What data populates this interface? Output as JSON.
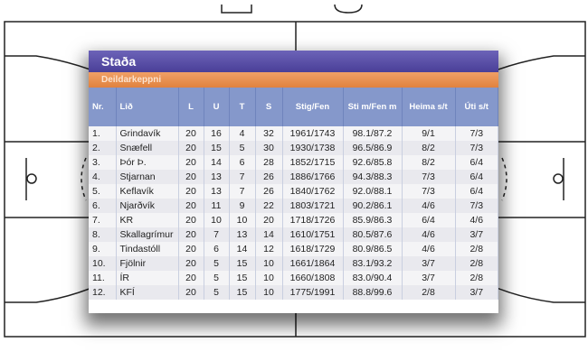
{
  "panel": {
    "title": "Staða",
    "subtitle": "Deildarkeppni"
  },
  "colors": {
    "title_bar": "#5a50a8",
    "sub_bar": "#e8904e",
    "header": "#8598cb"
  },
  "table": {
    "headers": [
      "Nr.",
      "Lið",
      "L",
      "U",
      "T",
      "S",
      "Stig/Fen",
      "Sti m/Fen m",
      "Heima s/t",
      "Úti s/t"
    ],
    "rows": [
      [
        "1.",
        "Grindavík",
        "20",
        "16",
        "4",
        "32",
        "1961/1743",
        "98.1/87.2",
        "9/1",
        "7/3"
      ],
      [
        "2.",
        "Snæfell",
        "20",
        "15",
        "5",
        "30",
        "1930/1738",
        "96.5/86.9",
        "8/2",
        "7/3"
      ],
      [
        "3.",
        "Þór Þ.",
        "20",
        "14",
        "6",
        "28",
        "1852/1715",
        "92.6/85.8",
        "8/2",
        "6/4"
      ],
      [
        "4.",
        "Stjarnan",
        "20",
        "13",
        "7",
        "26",
        "1886/1766",
        "94.3/88.3",
        "7/3",
        "6/4"
      ],
      [
        "5.",
        "Keflavík",
        "20",
        "13",
        "7",
        "26",
        "1840/1762",
        "92.0/88.1",
        "7/3",
        "6/4"
      ],
      [
        "6.",
        "Njarðvík",
        "20",
        "11",
        "9",
        "22",
        "1803/1721",
        "90.2/86.1",
        "4/6",
        "7/3"
      ],
      [
        "7.",
        "KR",
        "20",
        "10",
        "10",
        "20",
        "1718/1726",
        "85.9/86.3",
        "6/4",
        "4/6"
      ],
      [
        "8.",
        "Skallagrímur",
        "20",
        "7",
        "13",
        "14",
        "1610/1751",
        "80.5/87.6",
        "4/6",
        "3/7"
      ],
      [
        "9.",
        "Tindastóll",
        "20",
        "6",
        "14",
        "12",
        "1618/1729",
        "80.9/86.5",
        "4/6",
        "2/8"
      ],
      [
        "10.",
        "Fjölnir",
        "20",
        "5",
        "15",
        "10",
        "1661/1864",
        "83.1/93.2",
        "3/7",
        "2/8"
      ],
      [
        "11.",
        "ÍR",
        "20",
        "5",
        "15",
        "10",
        "1660/1808",
        "83.0/90.4",
        "3/7",
        "2/8"
      ],
      [
        "12.",
        "KFÍ",
        "20",
        "5",
        "15",
        "10",
        "1775/1991",
        "88.8/99.6",
        "2/8",
        "3/7"
      ]
    ]
  }
}
